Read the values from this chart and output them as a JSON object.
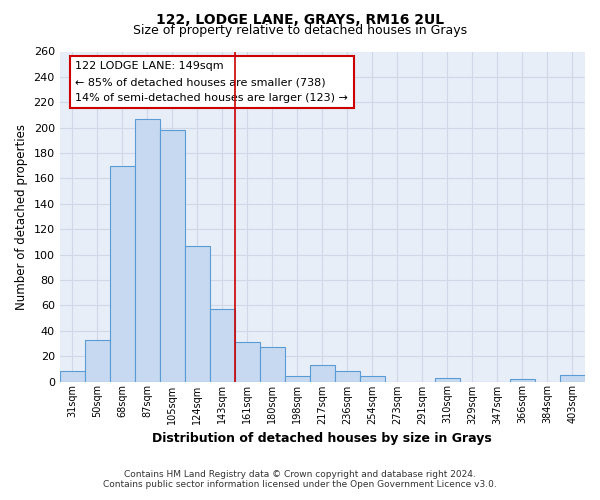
{
  "title": "122, LODGE LANE, GRAYS, RM16 2UL",
  "subtitle": "Size of property relative to detached houses in Grays",
  "xlabel": "Distribution of detached houses by size in Grays",
  "ylabel": "Number of detached properties",
  "footer_line1": "Contains HM Land Registry data © Crown copyright and database right 2024.",
  "footer_line2": "Contains public sector information licensed under the Open Government Licence v3.0.",
  "categories": [
    "31sqm",
    "50sqm",
    "68sqm",
    "87sqm",
    "105sqm",
    "124sqm",
    "143sqm",
    "161sqm",
    "180sqm",
    "198sqm",
    "217sqm",
    "236sqm",
    "254sqm",
    "273sqm",
    "291sqm",
    "310sqm",
    "329sqm",
    "347sqm",
    "366sqm",
    "384sqm",
    "403sqm"
  ],
  "values": [
    8,
    33,
    170,
    207,
    198,
    107,
    57,
    31,
    27,
    4,
    13,
    8,
    4,
    0,
    0,
    3,
    0,
    0,
    2,
    0,
    5
  ],
  "bar_color": "#c6d9f0",
  "bar_edge_color": "#5b9bd5",
  "ylim": [
    0,
    260
  ],
  "yticks": [
    0,
    20,
    40,
    60,
    80,
    100,
    120,
    140,
    160,
    180,
    200,
    220,
    240,
    260
  ],
  "property_line_x": 6.5,
  "property_line_color": "#cc0000",
  "annotation_title": "122 LODGE LANE: 149sqm",
  "annotation_line1": "← 85% of detached houses are smaller (738)",
  "annotation_line2": "14% of semi-detached houses are larger (123) →",
  "annotation_box_color": "#ffffff",
  "annotation_box_edge": "#cc0000",
  "grid_color": "#d0d8e8",
  "background_color": "#ffffff",
  "plot_bg_color": "#e8eef8"
}
